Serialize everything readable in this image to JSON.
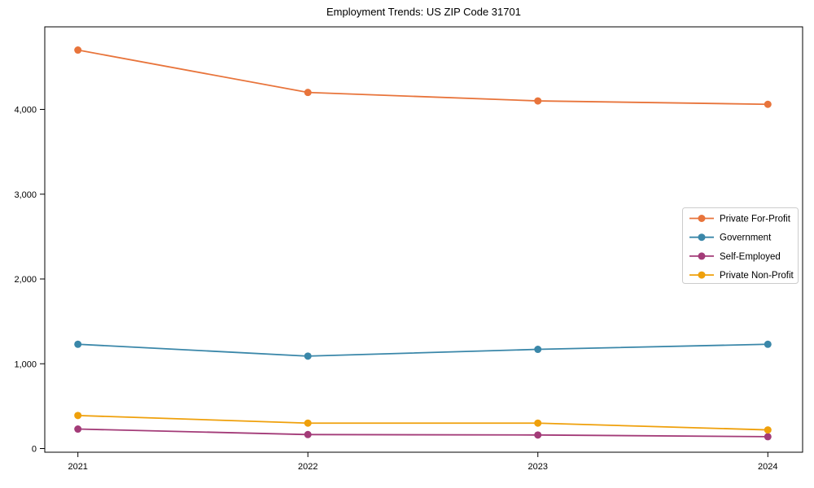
{
  "chart": {
    "title": "Employment Trends: US ZIP Code 31701"
  },
  "chart_data": {
    "type": "line",
    "title": "Employment Trends: US ZIP Code 31701",
    "xlabel": "",
    "ylabel": "",
    "x": [
      2021,
      2022,
      2023,
      2024
    ],
    "xtick_labels": [
      "2021",
      "2022",
      "2023",
      "2024"
    ],
    "yticks": [
      0,
      1000,
      2000,
      3000,
      4000
    ],
    "ytick_labels": [
      "0",
      "1,000",
      "2,000",
      "3,000",
      "4,000"
    ],
    "ylim": [
      -45,
      4970
    ],
    "grid": false,
    "marker": "circle",
    "legend_position": "center right",
    "legend_border_color": "#cccccc",
    "axis_color": "#000000",
    "background_color": "#ffffff",
    "series": [
      {
        "name": "Private For-Profit",
        "color": "#E8743B",
        "values": [
          4700,
          4200,
          4100,
          4060
        ]
      },
      {
        "name": "Government",
        "color": "#3A87A9",
        "values": [
          1230,
          1090,
          1170,
          1230
        ]
      },
      {
        "name": "Self-Employed",
        "color": "#A33B78",
        "values": [
          230,
          165,
          160,
          140
        ]
      },
      {
        "name": "Private Non-Profit",
        "color": "#EFA00B",
        "values": [
          390,
          300,
          300,
          220
        ]
      }
    ]
  }
}
